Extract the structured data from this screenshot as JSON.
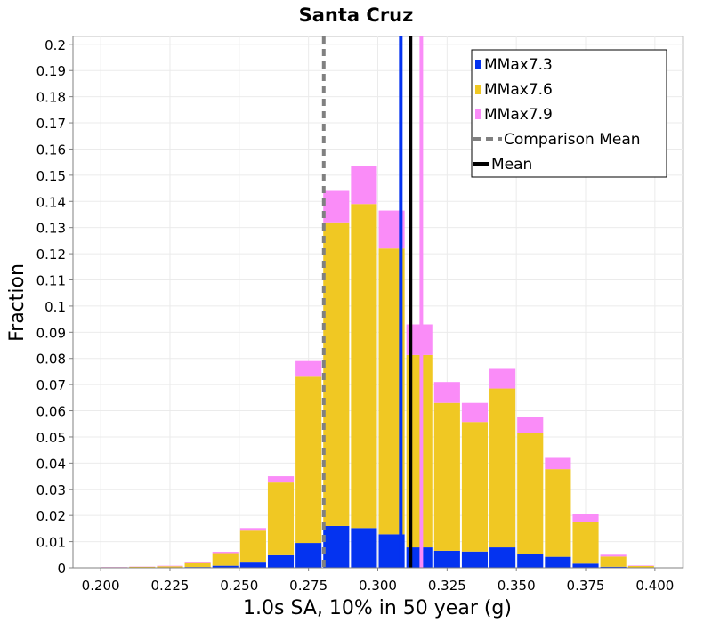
{
  "chart_data": {
    "type": "bar",
    "stacked": true,
    "title": "Santa Cruz",
    "xlabel": "1.0s SA, 10% in 50 year (g)",
    "ylabel": "Fraction",
    "xlim": [
      0.19,
      0.41
    ],
    "ylim": [
      0,
      0.203
    ],
    "bin_width": 0.01,
    "grid": true,
    "x_ticks": [
      "0.200",
      "0.225",
      "0.250",
      "0.275",
      "0.300",
      "0.325",
      "0.350",
      "0.375",
      "0.400"
    ],
    "x_tick_values": [
      0.2,
      0.225,
      0.25,
      0.275,
      0.3,
      0.325,
      0.35,
      0.375,
      0.4
    ],
    "y_ticks": [
      "0",
      "0.01",
      "0.02",
      "0.03",
      "0.04",
      "0.05",
      "0.06",
      "0.07",
      "0.08",
      "0.09",
      "0.1",
      "0.11",
      "0.12",
      "0.13",
      "0.14",
      "0.15",
      "0.16",
      "0.17",
      "0.18",
      "0.19",
      "0.2"
    ],
    "y_tick_values": [
      0,
      0.01,
      0.02,
      0.03,
      0.04,
      0.05,
      0.06,
      0.07,
      0.08,
      0.09,
      0.1,
      0.11,
      0.12,
      0.13,
      0.14,
      0.15,
      0.16,
      0.17,
      0.18,
      0.19,
      0.2
    ],
    "bin_centers": [
      0.205,
      0.215,
      0.225,
      0.235,
      0.245,
      0.255,
      0.265,
      0.275,
      0.285,
      0.295,
      0.305,
      0.315,
      0.325,
      0.335,
      0.345,
      0.355,
      0.365,
      0.375,
      0.385,
      0.395
    ],
    "series": [
      {
        "name": "MMax7.3",
        "color": "#0433f0",
        "values": [
          0.0,
          0.0,
          0.0,
          0.0003,
          0.0008,
          0.002,
          0.0048,
          0.0095,
          0.016,
          0.0152,
          0.0128,
          0.0078,
          0.0065,
          0.0062,
          0.0078,
          0.0054,
          0.0042,
          0.0016,
          0.0004,
          0.0001
        ]
      },
      {
        "name": "MMax7.6",
        "color": "#f0c823",
        "values": [
          0.0002,
          0.0004,
          0.0006,
          0.0015,
          0.0048,
          0.0122,
          0.0278,
          0.0635,
          0.116,
          0.1238,
          0.1092,
          0.0735,
          0.0565,
          0.0495,
          0.0607,
          0.0461,
          0.0335,
          0.0159,
          0.0039,
          0.0006
        ]
      },
      {
        "name": "MMax7.9",
        "color": "#fa8cf8",
        "values": [
          0.0001,
          0.0001,
          0.0002,
          0.0004,
          0.0005,
          0.001,
          0.0024,
          0.006,
          0.012,
          0.0145,
          0.0145,
          0.0117,
          0.008,
          0.0073,
          0.0075,
          0.006,
          0.0043,
          0.0029,
          0.0007,
          0.0002
        ]
      }
    ],
    "vertical_lines": [
      {
        "name": "MMax7.3",
        "x": 0.3083,
        "color": "#0433f0",
        "style": "solid",
        "in_legend": false
      },
      {
        "name": "MMax7.9",
        "x": 0.3157,
        "color": "#fa8cf8",
        "style": "solid",
        "in_legend": false
      },
      {
        "name": "Comparison Mean",
        "x": 0.2805,
        "color": "#808080",
        "style": "dashed",
        "in_legend": true
      },
      {
        "name": "Mean",
        "x": 0.3118,
        "color": "#000000",
        "style": "solid",
        "in_legend": true
      }
    ],
    "legend": {
      "placement": "top-right",
      "entries": [
        {
          "label": "MMax7.3",
          "kind": "box",
          "color": "#0433f0"
        },
        {
          "label": "MMax7.6",
          "kind": "box",
          "color": "#f0c823"
        },
        {
          "label": "MMax7.9",
          "kind": "box",
          "color": "#fa8cf8"
        },
        {
          "label": "Comparison Mean",
          "kind": "dashed",
          "color": "#808080"
        },
        {
          "label": "Mean",
          "kind": "line",
          "color": "#000000"
        }
      ]
    }
  }
}
